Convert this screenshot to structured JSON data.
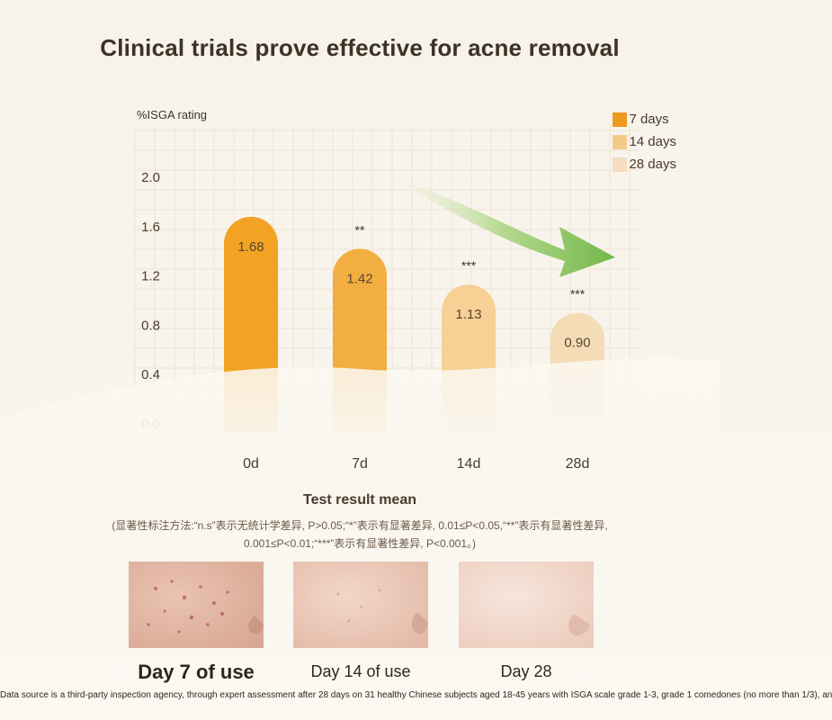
{
  "title": "Clinical trials prove effective for acne removal",
  "chart_data": {
    "type": "bar",
    "ylabel": "%ISGA rating",
    "ylim": [
      0,
      2.0
    ],
    "yticks": [
      "0.0",
      "0.4",
      "0.8",
      "1.2",
      "1.6",
      "2.0"
    ],
    "categories": [
      "0d",
      "7d",
      "14d",
      "28d"
    ],
    "values": [
      1.68,
      1.42,
      1.13,
      0.9
    ],
    "value_labels": [
      "1.68",
      "1.42",
      "1.13",
      "0.90"
    ],
    "significance": [
      "",
      "**",
      "***",
      "***"
    ],
    "bar_colors": [
      "#f2a324",
      "#f2ae40",
      "#f6d094",
      "#f4dcb6"
    ],
    "legend": [
      {
        "label": "7 days",
        "color": "#ee9a1f"
      },
      {
        "label": "14 days",
        "color": "#f5c98a"
      },
      {
        "label": "28 days",
        "color": "#f3dcc0"
      }
    ],
    "legend_position": "top-right"
  },
  "subtitle": "Test result mean",
  "note_line1": "(显著性标注方法:“n.s”表示无统计学差异, P>0.05;“*”表示有显著差异, 0.01≤P<0.05,“**”表示有显著性差异,",
  "note_line2": "0.001≤P<0.01;“***”表示有显著性差异, P<0.001。)",
  "photos": [
    {
      "label": "Day 7 of use"
    },
    {
      "label": "Day 14 of use"
    },
    {
      "label": "Day 28"
    }
  ],
  "footnote": "Data source is a third-party inspection agency, through expert assessment after 28 days on 31 healthy Chinese subjects aged 18-45 years with ISGA scale grade 1-3, grade 1 comedones (no more than 1/3), an"
}
